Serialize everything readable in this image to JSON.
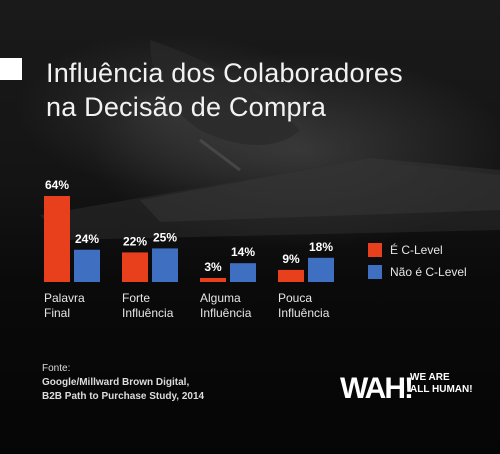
{
  "title": {
    "line1": "Influência dos Colaboradores",
    "line2": "na Decisão de Compra"
  },
  "chart_data": {
    "type": "bar",
    "categories": [
      [
        "Palavra",
        "Final"
      ],
      [
        "Forte",
        "Influência"
      ],
      [
        "Alguma",
        "Influência"
      ],
      [
        "Pouca",
        "Influência"
      ]
    ],
    "series": [
      {
        "name": "É C-Level",
        "color": "#e8401c",
        "values": [
          64,
          22,
          3,
          9
        ],
        "labels": [
          "64%",
          "22%",
          "3%",
          "9%"
        ]
      },
      {
        "name": "Não é C-Level",
        "color": "#3f6fc0",
        "values": [
          24,
          25,
          14,
          18
        ],
        "labels": [
          "24%",
          "25%",
          "14%",
          "18%"
        ]
      }
    ],
    "ylim": [
      0,
      64
    ],
    "legend_position": "right",
    "grid": false
  },
  "source": {
    "label": "Fonte:",
    "line1": "Google/Millward Brown Digital,",
    "line2": "B2B Path to Purchase Study, 2014"
  },
  "logo": {
    "line1": "WE ARE",
    "line2": "ALL HUMAN!",
    "mark": "WAH!"
  }
}
